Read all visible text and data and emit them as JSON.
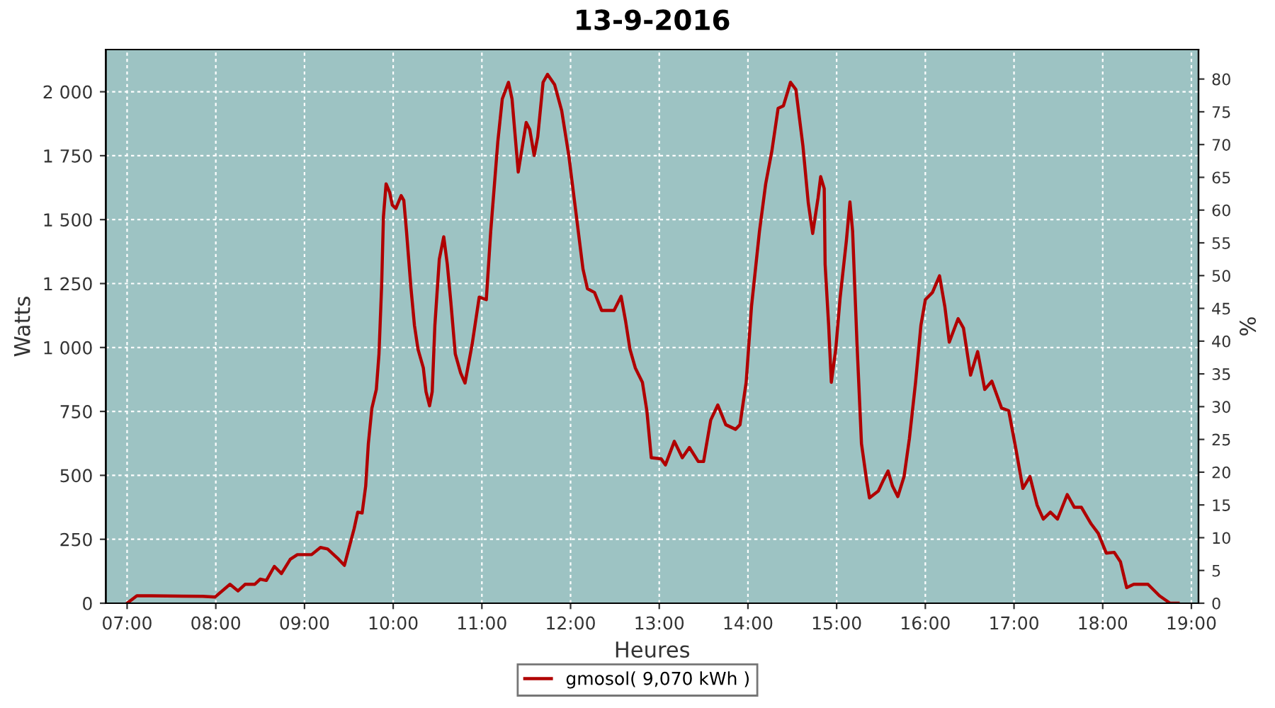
{
  "chart_data": {
    "type": "line",
    "title": "13-9-2016",
    "xlabel": "Heures",
    "ylabel": "Watts",
    "y2label": "%",
    "xlim": [
      6.76,
      19.08
    ],
    "ylim": [
      0,
      2165
    ],
    "y2lim": [
      0,
      84.5
    ],
    "xticks": [
      {
        "value": 7,
        "label": "07:00"
      },
      {
        "value": 8,
        "label": "08:00"
      },
      {
        "value": 9,
        "label": "09:00"
      },
      {
        "value": 10,
        "label": "10:00"
      },
      {
        "value": 11,
        "label": "11:00"
      },
      {
        "value": 12,
        "label": "12:00"
      },
      {
        "value": 13,
        "label": "13:00"
      },
      {
        "value": 14,
        "label": "14:00"
      },
      {
        "value": 15,
        "label": "15:00"
      },
      {
        "value": 16,
        "label": "16:00"
      },
      {
        "value": 17,
        "label": "17:00"
      },
      {
        "value": 18,
        "label": "18:00"
      },
      {
        "value": 19,
        "label": "19:00"
      }
    ],
    "yticks": [
      0,
      250,
      500,
      750,
      {
        "value": 1000,
        "label": "1 000"
      },
      {
        "value": 1250,
        "label": "1 250"
      },
      {
        "value": 1500,
        "label": "1 500"
      },
      {
        "value": 1750,
        "label": "1 750"
      },
      {
        "value": 2000,
        "label": "2 000"
      }
    ],
    "y2ticks": [
      0,
      5,
      10,
      15,
      20,
      25,
      30,
      35,
      40,
      45,
      50,
      55,
      60,
      65,
      70,
      75,
      80
    ],
    "grid": true,
    "legend": "bottom",
    "marker": "none",
    "line_style": "solid",
    "series": [
      {
        "name": "gmosol( 9,070 kWh )",
        "color": "#b00000",
        "x": [
          7.0,
          7.11,
          7.27,
          7.85,
          7.99,
          8.16,
          8.25,
          8.33,
          8.44,
          8.5,
          8.57,
          8.66,
          8.74,
          8.84,
          8.92,
          9.08,
          9.18,
          9.26,
          9.37,
          9.45,
          9.56,
          9.6,
          9.65,
          9.69,
          9.72,
          9.76,
          9.81,
          9.84,
          9.87,
          9.89,
          9.92,
          9.96,
          9.99,
          10.03,
          10.09,
          10.12,
          10.15,
          10.2,
          10.24,
          10.28,
          10.34,
          10.37,
          10.41,
          10.44,
          10.47,
          10.52,
          10.57,
          10.61,
          10.65,
          10.7,
          10.76,
          10.81,
          10.89,
          10.97,
          11.05,
          11.1,
          11.18,
          11.23,
          11.3,
          11.34,
          11.41,
          11.5,
          11.54,
          11.59,
          11.63,
          11.69,
          11.74,
          11.82,
          11.9,
          11.98,
          12.06,
          12.14,
          12.19,
          12.27,
          12.35,
          12.49,
          12.57,
          12.62,
          12.67,
          12.73,
          12.81,
          12.86,
          12.91,
          13.02,
          13.07,
          13.17,
          13.26,
          13.34,
          13.44,
          13.5,
          13.58,
          13.66,
          13.75,
          13.86,
          13.91,
          13.98,
          14.04,
          14.13,
          14.2,
          14.27,
          14.34,
          14.4,
          14.48,
          14.54,
          14.62,
          14.68,
          14.73,
          14.79,
          14.82,
          14.86,
          14.87,
          14.91,
          14.94,
          14.99,
          15.04,
          15.11,
          15.15,
          15.18,
          15.23,
          15.28,
          15.34,
          15.37,
          15.47,
          15.52,
          15.58,
          15.63,
          15.69,
          15.76,
          15.82,
          15.89,
          15.95,
          16.0,
          16.08,
          16.16,
          16.22,
          16.27,
          16.37,
          16.43,
          16.51,
          16.59,
          16.67,
          16.75,
          16.86,
          16.94,
          17.02,
          17.1,
          17.18,
          17.26,
          17.33,
          17.41,
          17.49,
          17.6,
          17.68,
          17.76,
          17.87,
          17.95,
          18.04,
          18.13,
          18.2,
          18.27,
          18.35,
          18.51,
          18.64,
          18.76,
          18.85
        ],
        "values": [
          0,
          29,
          29,
          27,
          24,
          74,
          48,
          74,
          74,
          94,
          89,
          144,
          116,
          172,
          190,
          190,
          218,
          212,
          177,
          148,
          292,
          356,
          353,
          458,
          624,
          763,
          836,
          975,
          1243,
          1511,
          1640,
          1607,
          1557,
          1544,
          1594,
          1575,
          1455,
          1234,
          1086,
          993,
          920,
          827,
          772,
          827,
          1086,
          1345,
          1433,
          1326,
          1178,
          975,
          901,
          861,
          1012,
          1197,
          1187,
          1455,
          1806,
          1972,
          2037,
          1972,
          1686,
          1880,
          1852,
          1751,
          1824,
          2037,
          2068,
          2028,
          1926,
          1751,
          1529,
          1307,
          1230,
          1215,
          1145,
          1145,
          1200,
          1104,
          993,
          920,
          864,
          753,
          569,
          565,
          541,
          633,
          569,
          609,
          554,
          554,
          716,
          775,
          698,
          680,
          698,
          864,
          1160,
          1455,
          1640,
          1769,
          1935,
          1945,
          2037,
          2009,
          1788,
          1566,
          1446,
          1584,
          1668,
          1621,
          1326,
          1086,
          864,
          993,
          1197,
          1418,
          1569,
          1455,
          1012,
          624,
          476,
          412,
          439,
          476,
          517,
          458,
          417,
          495,
          643,
          864,
          1086,
          1187,
          1215,
          1280,
          1160,
          1021,
          1113,
          1076,
          892,
          984,
          836,
          868,
          763,
          753,
          605,
          449,
          495,
          384,
          329,
          356,
          329,
          425,
          375,
          375,
          310,
          273,
          196,
          199,
          162,
          61,
          74,
          74,
          29,
          0,
          0
        ]
      }
    ]
  }
}
